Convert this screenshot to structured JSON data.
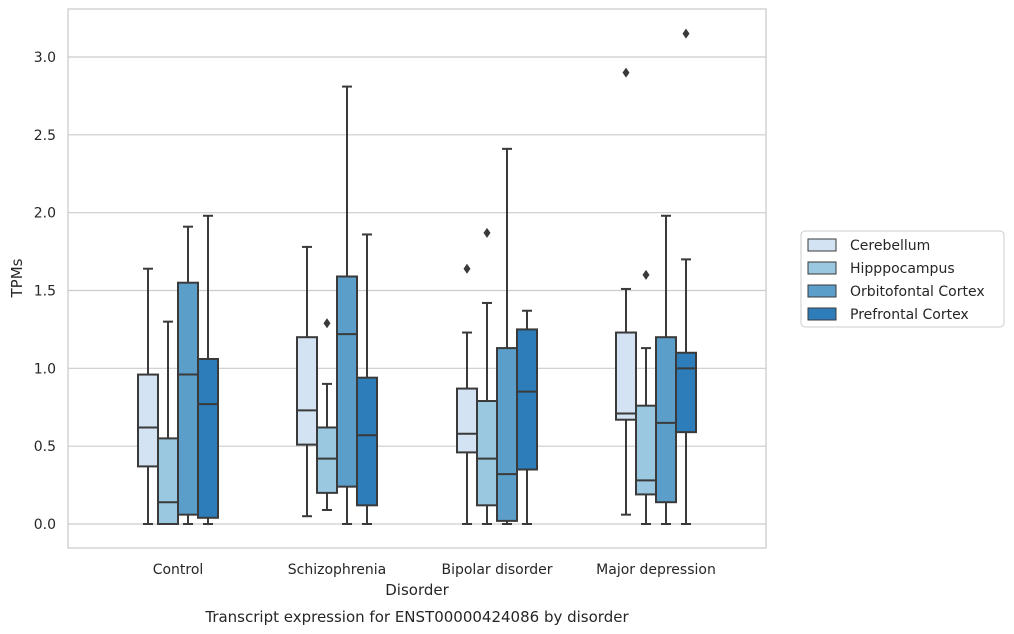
{
  "chart_data": {
    "type": "boxplot",
    "title": "",
    "caption": "Transcript expression for ENST00000424086 by disorder",
    "xlabel": "Disorder",
    "ylabel": "TPMs",
    "ylim": [
      -0.15,
      3.3
    ],
    "yticks": [
      0.0,
      0.5,
      1.0,
      1.5,
      2.0,
      2.5,
      3.0
    ],
    "ytick_labels": [
      "0.0",
      "0.5",
      "1.0",
      "1.5",
      "2.0",
      "2.5",
      "3.0"
    ],
    "grid": "horizontal",
    "legend_position": "right",
    "categories": [
      "Control",
      "Schizophrenia",
      "Bipolar disorder",
      "Major depression"
    ],
    "series": [
      {
        "name": "Cerebellum",
        "color": "#d3e3f3",
        "boxes": [
          {
            "whislo": 0.0,
            "q1": 0.37,
            "med": 0.62,
            "q3": 0.96,
            "whishi": 1.64,
            "fliers": []
          },
          {
            "whislo": 0.05,
            "q1": 0.51,
            "med": 0.73,
            "q3": 1.2,
            "whishi": 1.78,
            "fliers": []
          },
          {
            "whislo": 0.0,
            "q1": 0.46,
            "med": 0.58,
            "q3": 0.87,
            "whishi": 1.23,
            "fliers": [
              1.64
            ]
          },
          {
            "whislo": 0.06,
            "q1": 0.67,
            "med": 0.71,
            "q3": 1.23,
            "whishi": 1.51,
            "fliers": [
              2.9
            ]
          }
        ]
      },
      {
        "name": "Hipppocampus",
        "color": "#9ac8e0",
        "boxes": [
          {
            "whislo": 0.0,
            "q1": 0.0,
            "med": 0.14,
            "q3": 0.55,
            "whishi": 1.3,
            "fliers": []
          },
          {
            "whislo": 0.09,
            "q1": 0.2,
            "med": 0.42,
            "q3": 0.62,
            "whishi": 0.9,
            "fliers": [
              1.29
            ]
          },
          {
            "whislo": 0.0,
            "q1": 0.12,
            "med": 0.42,
            "q3": 0.79,
            "whishi": 1.42,
            "fliers": [
              1.87
            ]
          },
          {
            "whislo": 0.0,
            "q1": 0.19,
            "med": 0.28,
            "q3": 0.76,
            "whishi": 1.13,
            "fliers": [
              1.6
            ]
          }
        ]
      },
      {
        "name": "Orbitofontal Cortex",
        "color": "#5b9ec9",
        "boxes": [
          {
            "whislo": 0.0,
            "q1": 0.06,
            "med": 0.96,
            "q3": 1.55,
            "whishi": 1.91,
            "fliers": []
          },
          {
            "whislo": 0.0,
            "q1": 0.24,
            "med": 1.22,
            "q3": 1.59,
            "whishi": 2.81,
            "fliers": []
          },
          {
            "whislo": 0.0,
            "q1": 0.02,
            "med": 0.32,
            "q3": 1.13,
            "whishi": 2.41,
            "fliers": []
          },
          {
            "whislo": 0.0,
            "q1": 0.14,
            "med": 0.65,
            "q3": 1.2,
            "whishi": 1.98,
            "fliers": []
          }
        ]
      },
      {
        "name": "Prefrontal Cortex",
        "color": "#2d7dbb",
        "boxes": [
          {
            "whislo": 0.0,
            "q1": 0.04,
            "med": 0.77,
            "q3": 1.06,
            "whishi": 1.98,
            "fliers": []
          },
          {
            "whislo": 0.0,
            "q1": 0.12,
            "med": 0.57,
            "q3": 0.94,
            "whishi": 1.86,
            "fliers": []
          },
          {
            "whislo": 0.0,
            "q1": 0.35,
            "med": 0.85,
            "q3": 1.25,
            "whishi": 1.37,
            "fliers": []
          },
          {
            "whislo": 0.0,
            "q1": 0.59,
            "med": 1.0,
            "q3": 1.1,
            "whishi": 1.7,
            "fliers": [
              3.15
            ]
          }
        ]
      }
    ],
    "colors": {
      "line": "#3a3a3a",
      "grid": "#cccccc",
      "frame": "#cccccc"
    }
  }
}
